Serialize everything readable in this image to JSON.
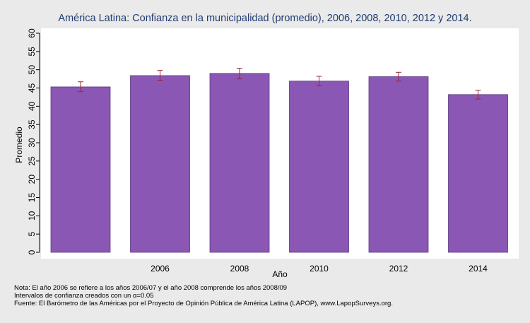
{
  "chart_data": {
    "type": "bar",
    "title": "América Latina: Confianza en la municipalidad (promedio), 2006, 2008, 2010, 2012 y 2014.",
    "xlabel": "Año",
    "ylabel": "Promedio",
    "ylim": [
      0,
      60
    ],
    "yticks": [
      0,
      5,
      10,
      15,
      20,
      25,
      30,
      35,
      40,
      45,
      50,
      55,
      60
    ],
    "categories": [
      "",
      "2006",
      "2008",
      "2010",
      "2012",
      "2014"
    ],
    "values": [
      45.3,
      48.4,
      49.0,
      46.9,
      48.1,
      43.2
    ],
    "ci_low": [
      44.0,
      47.1,
      47.5,
      45.6,
      46.9,
      42.0
    ],
    "ci_high": [
      46.7,
      49.8,
      50.4,
      48.2,
      49.3,
      44.4
    ],
    "bar_color": "#8b57b5",
    "errorbar_color": "#9b2335",
    "grid": false,
    "legend": "none"
  },
  "notes": [
    "Nota: El año 2006 se refiere a los años 2006/07 y el año 2008 comprende los años 2008/09",
    "Intervalos de confianza creados con un α=0.05",
    "Fuente: El Barómetro de las Américas por el Proyecto de Opinión Pública de América Latina (LAPOP), www.LapopSurveys.org."
  ]
}
